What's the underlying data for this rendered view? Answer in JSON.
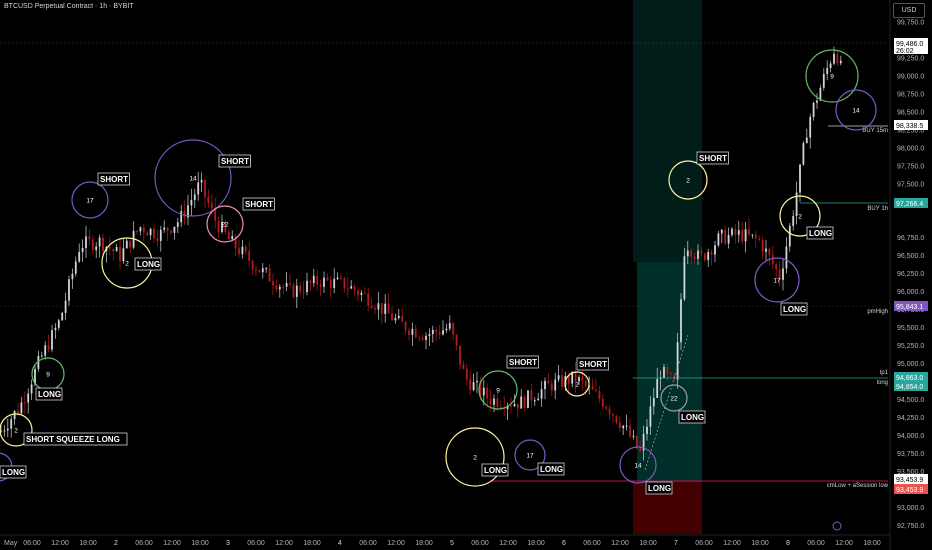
{
  "header": {
    "title": "BTCUSD Perpetual Contract · 1h · BYBIT",
    "currency": "USD"
  },
  "colors": {
    "background": "#000000",
    "up_candle": "#d1d4dc",
    "down_candle": "#b71c1c",
    "long_zone": "#00695c",
    "short_zone": "#4a0000",
    "purple_circle": "#7e57c2",
    "yellow_circle": "#fff59d",
    "green_circle": "#66bb6a",
    "pink_circle": "#f48fb1",
    "gray_circle": "#9e9e9e"
  },
  "chart_data": {
    "type": "candlestick",
    "y_axis_side": "right",
    "y_ticks": [
      "99,750.0",
      "99,250.0",
      "99,000.0",
      "98,750.0",
      "98,500.0",
      "98,250.0",
      "98,000.0",
      "97,750.0",
      "97,500.0",
      "97,250.0",
      "96,750.0",
      "96,500.0",
      "96,250.0",
      "96,000.0",
      "95,750.0",
      "95,500.0",
      "95,250.0",
      "95,000.0",
      "94,500.0",
      "94,250.0",
      "94,000.0",
      "93,750.0",
      "93,500.0",
      "93,000.0",
      "92,750.0"
    ],
    "x_ticks": [
      "May",
      "06:00",
      "12:00",
      "18:00",
      "2",
      "06:00",
      "12:00",
      "18:00",
      "3",
      "06:00",
      "12:00",
      "18:00",
      "4",
      "06:00",
      "12:00",
      "18:00",
      "5",
      "06:00",
      "12:00",
      "18:00",
      "6",
      "06:00",
      "12:00",
      "18:00",
      "7",
      "06:00",
      "12:00",
      "18:00",
      "8",
      "06:00",
      "12:00",
      "18:00"
    ],
    "price_tags": [
      {
        "text": "99,486.0",
        "sub": "26:02",
        "type": "last"
      },
      {
        "text": "98,338.5",
        "type": "white"
      },
      {
        "text": "97,266.4",
        "type": "green"
      },
      {
        "text": "95,843.1",
        "type": "purple"
      },
      {
        "text": "94,863.0",
        "type": "green"
      },
      {
        "text": "94,854.0",
        "type": "green"
      },
      {
        "text": "93,453.9",
        "type": "white"
      },
      {
        "text": "93,453.9",
        "type": "red"
      }
    ],
    "line_labels": [
      "BUY 15m",
      "BUY 1h",
      "pmHigh",
      "tp1",
      "long",
      "cmLow + aSession low"
    ],
    "signal_labels": [
      "SHORT",
      "SHORT",
      "SHORT",
      "SHORT",
      "SHORT",
      "SHORT",
      "SHORT",
      "LONG",
      "LONG",
      "LONG",
      "LONG",
      "LONG",
      "LONG",
      "LONG",
      "LONG",
      "LONG",
      "SHORT SQUEEZE LONG",
      "LONG"
    ],
    "circle_numbers": [
      "9",
      "14",
      "2",
      "17",
      "9",
      "2",
      "2",
      "17",
      "14",
      "2",
      "22",
      "14",
      "22",
      "2",
      "2",
      "17"
    ]
  }
}
